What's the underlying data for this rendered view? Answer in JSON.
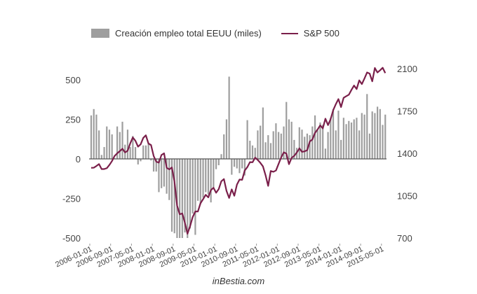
{
  "chart_data": {
    "type": "bar+line",
    "title": "",
    "legend": {
      "placement": "top",
      "items": [
        {
          "label": "Creación empleo total EEUU (miles)",
          "kind": "bar",
          "color": "#9e9e9e"
        },
        {
          "label": "S&P 500",
          "kind": "line",
          "color": "#7a1f4a"
        }
      ]
    },
    "x_start": "2006-01",
    "x_tick_labels": [
      "2006-01-01",
      "2006-09-01",
      "2007-05-01",
      "2008-01-01",
      "2008-09-01",
      "2009-05-01",
      "2010-01-01",
      "2010-09-01",
      "2011-05-01",
      "2012-01-01",
      "2012-09-01",
      "2013-05-01",
      "2014-01-01",
      "2014-09-01",
      "2015-05-01"
    ],
    "y_left": {
      "ticks": [
        "500",
        "250",
        "0",
        "-250",
        "-500"
      ],
      "range": [
        -500,
        600
      ]
    },
    "y_right": {
      "ticks": [
        "2100",
        "1750",
        "1400",
        "1050",
        "700"
      ],
      "range": [
        700,
        2100
      ]
    },
    "series": [
      {
        "name": "Creación empleo total EEUU (miles)",
        "type": "bar",
        "axis": "left",
        "values": [
          275,
          315,
          280,
          180,
          25,
          75,
          205,
          185,
          155,
          5,
          205,
          170,
          235,
          90,
          185,
          75,
          145,
          75,
          -35,
          -15,
          85,
          85,
          95,
          -10,
          -80,
          -80,
          -210,
          -185,
          -175,
          -220,
          -260,
          -460,
          -470,
          -500,
          -500,
          -500,
          -465,
          -500,
          -440,
          -345,
          -480,
          -265,
          -285,
          -245,
          -210,
          -225,
          -275,
          -180,
          -65,
          -40,
          30,
          155,
          250,
          520,
          -100,
          -50,
          -60,
          -90,
          -60,
          -105,
          245,
          115,
          85,
          70,
          180,
          210,
          325,
          105,
          150,
          100,
          175,
          225,
          170,
          160,
          205,
          360,
          250,
          235,
          120,
          70,
          200,
          185,
          140,
          160,
          150,
          205,
          275,
          180,
          230,
          215,
          65,
          170,
          260,
          315,
          180,
          305,
          120,
          260,
          220,
          240,
          230,
          250,
          260,
          180,
          290,
          280,
          410,
          160,
          300,
          290,
          330,
          315,
          215,
          280
        ]
      },
      {
        "name": "S&P 500",
        "type": "line",
        "axis": "right",
        "values": [
          1280,
          1281,
          1295,
          1311,
          1270,
          1270,
          1277,
          1304,
          1336,
          1378,
          1400,
          1418,
          1438,
          1407,
          1421,
          1482,
          1531,
          1503,
          1455,
          1474,
          1527,
          1549,
          1481,
          1468,
          1378,
          1331,
          1323,
          1386,
          1400,
          1280,
          1267,
          1283,
          1166,
          969,
          896,
          903,
          826,
          735,
          798,
          873,
          919,
          919,
          987,
          1021,
          1057,
          1036,
          1096,
          1115,
          1074,
          1104,
          1169,
          1187,
          1089,
          1031,
          1102,
          1049,
          1141,
          1183,
          1181,
          1258,
          1286,
          1327,
          1326,
          1364,
          1345,
          1321,
          1292,
          1219,
          1131,
          1254,
          1247,
          1258,
          1312,
          1366,
          1408,
          1398,
          1310,
          1362,
          1379,
          1406,
          1441,
          1412,
          1416,
          1426,
          1498,
          1514,
          1569,
          1597,
          1631,
          1606,
          1686,
          1633,
          1682,
          1757,
          1806,
          1848,
          1782,
          1859,
          1872,
          1884,
          1924,
          1960,
          1931,
          2003,
          1972,
          2018,
          2068,
          2059,
          1995,
          2105,
          2068,
          2086,
          2107,
          2063
        ]
      }
    ]
  },
  "legend": {
    "bar_label": "Creación empleo total EEUU (miles)",
    "line_label": "S&P 500"
  },
  "credit": "inBestia.com"
}
